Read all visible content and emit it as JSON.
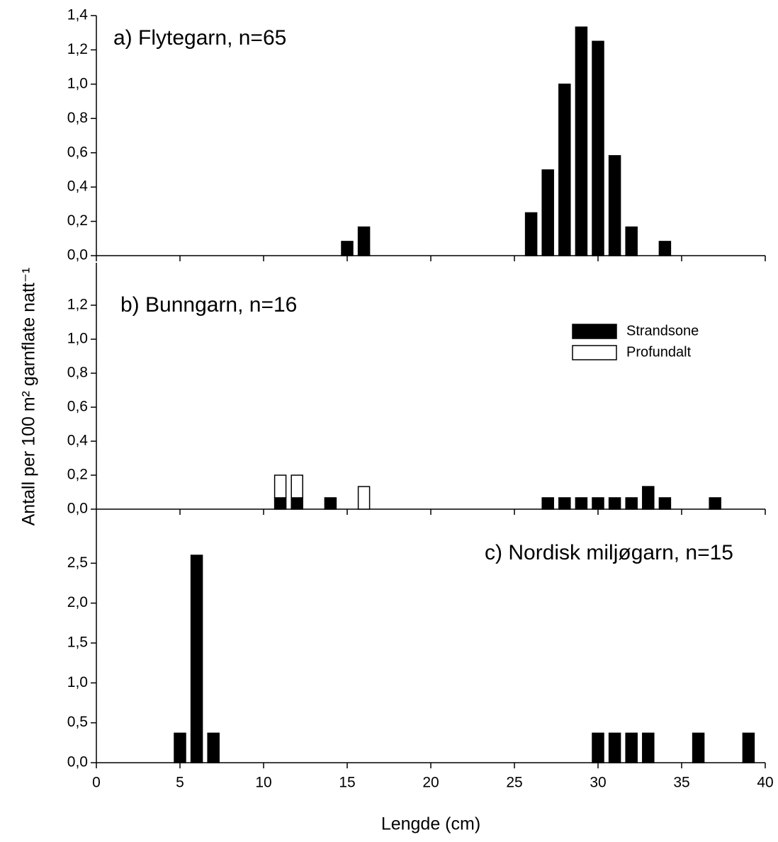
{
  "chart_data": [
    {
      "type": "bar",
      "title": "a) Flytegarn, n=65",
      "x": [
        15,
        16,
        26,
        27,
        28,
        29,
        30,
        31,
        32,
        34
      ],
      "series": [
        {
          "name": "Strandsone",
          "color": "#000000",
          "values": [
            0.083,
            0.167,
            0.25,
            0.5,
            1.0,
            1.333,
            1.25,
            0.583,
            0.167,
            0.083
          ]
        }
      ],
      "ylim": [
        0,
        1.4
      ],
      "yticks": [
        {
          "value": 0,
          "label": "0,0"
        },
        {
          "value": 0.2,
          "label": "0,2"
        },
        {
          "value": 0.4,
          "label": "0,4"
        },
        {
          "value": 0.6,
          "label": "0,6"
        },
        {
          "value": 0.8,
          "label": "0,8"
        },
        {
          "value": 1.0,
          "label": "1,0"
        },
        {
          "value": 1.2,
          "label": "1,2"
        },
        {
          "value": 1.4,
          "label": "1,4"
        }
      ]
    },
    {
      "type": "stacked_bar",
      "title": "b) Bunngarn, n=16",
      "ylabel": "Antall per 100 m² garnflate natt⁻¹",
      "x": [
        11,
        12,
        14,
        16,
        27,
        28,
        29,
        30,
        31,
        32,
        33,
        34,
        37
      ],
      "series": [
        {
          "name": "Strandsone",
          "color": "#000000",
          "values": [
            0.067,
            0.067,
            0.067,
            null,
            0.067,
            0.067,
            0.067,
            0.067,
            0.067,
            0.067,
            0.133,
            0.067,
            0.067
          ]
        },
        {
          "name": "Profundalt",
          "color": "#ffffff",
          "values": [
            0.133,
            0.133,
            null,
            0.133,
            null,
            null,
            null,
            null,
            null,
            null,
            null,
            null,
            null
          ]
        }
      ],
      "ylim": [
        0,
        1.4
      ],
      "yticks": [
        {
          "value": 0,
          "label": "0,0"
        },
        {
          "value": 0.2,
          "label": "0,2"
        },
        {
          "value": 0.4,
          "label": "0,4"
        },
        {
          "value": 0.6,
          "label": "0,6"
        },
        {
          "value": 0.8,
          "label": "0,8"
        },
        {
          "value": 1.0,
          "label": "1,0"
        },
        {
          "value": 1.2,
          "label": "1,2"
        }
      ]
    },
    {
      "type": "bar",
      "title": "c) Nordisk miljøgarn, n=15",
      "xlabel": "Lengde (cm)",
      "x": [
        5,
        6,
        7,
        30,
        31,
        32,
        33,
        36,
        39
      ],
      "series": [
        {
          "name": "Strandsone",
          "color": "#000000",
          "values": [
            0.37,
            2.6,
            0.37,
            0.37,
            0.37,
            0.37,
            0.37,
            0.37,
            0.37
          ]
        }
      ],
      "xlim": [
        0,
        40
      ],
      "xticks": [
        0,
        5,
        10,
        15,
        20,
        25,
        30,
        35,
        40
      ],
      "ylim": [
        0,
        3
      ],
      "yticks": [
        {
          "value": 0,
          "label": "0,0"
        },
        {
          "value": 0.5,
          "label": "0,5"
        },
        {
          "value": 1.0,
          "label": "1,0"
        },
        {
          "value": 1.5,
          "label": "1,5"
        },
        {
          "value": 2.0,
          "label": "2,0"
        },
        {
          "value": 2.5,
          "label": "2,5"
        }
      ]
    }
  ]
}
